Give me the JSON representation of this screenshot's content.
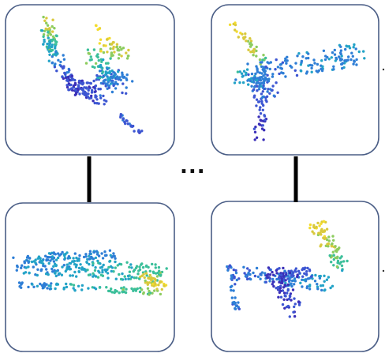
{
  "ellipsis": "...",
  "colormap": [
    "#3b2fb8",
    "#3d56d2",
    "#2e7ed6",
    "#23a3c7",
    "#3bbf9a",
    "#8dcc5f",
    "#d9c93c",
    "#f4dc2d"
  ],
  "box_border_color": "#4b5e86",
  "connector_color": "#000000",
  "panels": [
    {
      "id": "top-left",
      "shape": "chair-like point cloud"
    },
    {
      "id": "top-right",
      "shape": "airplane point cloud"
    },
    {
      "id": "bottom-left",
      "shape": "car point cloud"
    },
    {
      "id": "bottom-right",
      "shape": "chair-like point cloud"
    }
  ]
}
